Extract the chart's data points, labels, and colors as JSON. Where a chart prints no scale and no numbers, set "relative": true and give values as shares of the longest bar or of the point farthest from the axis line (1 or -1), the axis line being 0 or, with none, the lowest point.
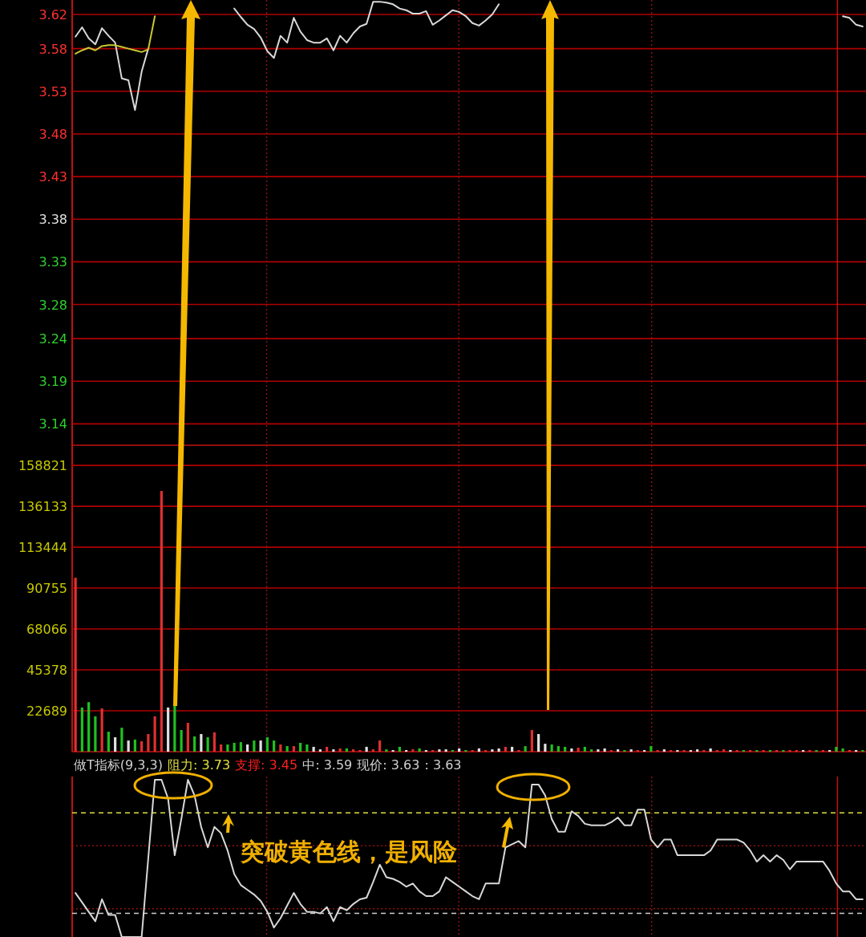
{
  "chart_data": [
    {
      "type": "line",
      "categories": [
        null,
        null,
        null,
        null,
        null,
        null,
        null,
        null,
        null,
        null,
        null,
        null,
        null,
        null,
        null,
        null,
        null,
        null,
        null,
        null,
        null,
        null,
        null,
        null,
        null,
        null,
        null,
        null,
        null,
        null,
        null,
        null,
        null,
        null,
        null,
        null,
        null,
        null,
        null,
        null,
        null,
        null,
        null,
        null,
        null,
        null,
        null,
        null,
        null,
        null,
        null,
        null,
        null,
        null,
        null,
        null,
        null,
        null,
        null,
        null,
        null,
        null,
        null,
        null,
        null,
        null,
        null,
        null,
        null,
        null,
        null,
        null,
        null,
        null,
        null,
        null,
        null,
        null,
        null,
        null,
        null,
        null,
        null,
        null,
        null,
        null,
        null,
        null,
        null,
        null,
        null,
        null,
        null,
        null,
        null,
        null,
        null,
        null,
        null,
        null,
        null,
        null,
        null,
        null,
        null,
        null,
        null,
        null,
        null,
        null,
        null,
        null,
        null,
        null,
        null,
        null,
        null,
        null,
        null,
        null
      ],
      "ylim": [
        3.115,
        3.637
      ],
      "yticks": [
        3.62,
        3.58,
        3.53,
        3.48,
        3.43,
        3.38,
        3.33,
        3.28,
        3.24,
        3.19,
        3.14
      ],
      "grid": "y",
      "tick_labels": "y",
      "series": [
        {
          "color": "#d8d8d8",
          "values": [
            3.594,
            3.605,
            3.592,
            3.585,
            3.604,
            3.595,
            3.587,
            3.545,
            3.543,
            3.508,
            3.553,
            3.58,
            null,
            null,
            null,
            null,
            null,
            null,
            null,
            null,
            null,
            null,
            null,
            null,
            null,
            null,
            null,
            null,
            null,
            null,
            null,
            null,
            null,
            null,
            null,
            null,
            null,
            null,
            null,
            null,
            null,
            null,
            null,
            null,
            null,
            null,
            null,
            null,
            null,
            null,
            null,
            null,
            null,
            null,
            null,
            null,
            null,
            null,
            null,
            null,
            null,
            null,
            null,
            null,
            null,
            null,
            null,
            null,
            null,
            null,
            null,
            null,
            null,
            null,
            null,
            null,
            null,
            null,
            null,
            null,
            null,
            null,
            null,
            null,
            null,
            null,
            null,
            null,
            null,
            null,
            null,
            null,
            null,
            null,
            null,
            null,
            null,
            null,
            null,
            null,
            null,
            null,
            null,
            null,
            null,
            null,
            null,
            null,
            null,
            null,
            null,
            null,
            null,
            null,
            null,
            null,
            null,
            null,
            null,
            null
          ]
        },
        {
          "color": "#d8d8d8",
          "values": [
            null,
            null,
            null,
            null,
            null,
            null,
            null,
            null,
            null,
            null,
            null,
            null,
            null,
            null,
            null,
            null,
            null,
            null,
            null,
            null,
            null,
            null,
            null,
            null,
            3.627,
            3.617,
            3.608,
            3.603,
            3.593,
            3.577,
            3.569,
            3.595,
            3.587,
            3.616,
            3.6,
            3.59,
            3.587,
            3.587,
            3.592,
            3.578,
            3.595,
            3.587,
            3.598,
            3.606,
            3.609,
            3.635,
            3.635,
            3.634,
            3.632,
            3.627,
            3.625,
            3.621,
            3.621,
            3.624,
            3.608,
            3.613,
            3.619,
            3.625,
            3.623,
            3.618,
            3.61,
            3.607,
            3.613,
            3.62,
            3.632,
            null,
            null,
            null,
            null,
            null,
            null,
            null,
            null,
            null,
            null,
            null,
            null,
            null,
            null,
            null,
            null,
            null,
            null,
            null,
            null,
            null,
            null,
            null,
            null,
            null,
            null,
            null,
            null,
            null,
            null,
            null,
            null,
            null,
            null,
            null,
            null,
            null,
            null,
            null,
            null,
            null,
            null,
            null,
            null,
            null,
            null,
            null,
            null,
            null,
            null,
            null,
            null,
            null,
            null,
            null
          ]
        },
        {
          "color": "#d8d8d8",
          "values": [
            null,
            null,
            null,
            null,
            null,
            null,
            null,
            null,
            null,
            null,
            null,
            null,
            null,
            null,
            null,
            null,
            null,
            null,
            null,
            null,
            null,
            null,
            null,
            null,
            null,
            null,
            null,
            null,
            null,
            null,
            null,
            null,
            null,
            null,
            null,
            null,
            null,
            null,
            null,
            null,
            null,
            null,
            null,
            null,
            null,
            null,
            null,
            null,
            null,
            null,
            null,
            null,
            null,
            null,
            null,
            null,
            null,
            null,
            null,
            null,
            null,
            null,
            null,
            null,
            null,
            null,
            null,
            null,
            null,
            null,
            null,
            null,
            null,
            null,
            null,
            null,
            null,
            null,
            null,
            null,
            null,
            null,
            null,
            null,
            null,
            null,
            null,
            null,
            null,
            null,
            null,
            null,
            null,
            null,
            null,
            null,
            null,
            null,
            null,
            null,
            null,
            null,
            null,
            null,
            null,
            null,
            null,
            null,
            null,
            null,
            null,
            null,
            null,
            null,
            null,
            null,
            3.618,
            3.616,
            3.608,
            3.606
          ]
        },
        {
          "color": "#c8c832",
          "values": [
            3.574,
            3.578,
            3.581,
            3.578,
            3.583,
            3.584,
            3.584,
            3.582,
            3.58,
            3.578,
            3.576,
            3.579,
            3.618,
            null,
            null,
            null,
            null,
            null,
            null,
            null,
            null,
            null,
            null,
            null,
            null,
            null,
            null,
            null,
            null,
            null,
            null,
            null,
            null,
            null,
            null,
            null,
            null,
            null,
            null,
            null,
            null,
            null,
            null,
            null,
            null,
            null,
            null,
            null,
            null,
            null,
            null,
            null,
            null,
            null,
            null,
            null,
            null,
            null,
            null,
            null,
            null,
            null,
            null,
            null,
            null,
            null,
            null,
            null,
            null,
            null,
            null,
            null,
            null,
            null,
            null,
            null,
            null,
            null,
            null,
            null,
            null,
            null,
            null,
            null,
            null,
            null,
            null,
            null,
            null,
            null,
            null,
            null,
            null,
            null,
            null,
            null,
            null,
            null,
            null,
            null,
            null,
            null,
            null,
            null,
            null,
            null,
            null,
            null,
            null,
            null,
            null,
            null,
            null,
            null,
            null,
            null,
            null,
            null,
            null,
            null
          ]
        }
      ]
    },
    {
      "type": "bar",
      "ylim": [
        0,
        170000
      ],
      "yticks": [
        22689,
        45378,
        68066,
        90755,
        113444,
        136133,
        158821
      ],
      "grid": "y",
      "tick_labels": "y",
      "categories": [
        null,
        null,
        null,
        null,
        null,
        null,
        null,
        null,
        null,
        null,
        null,
        null,
        null,
        null,
        null,
        null,
        null,
        null,
        null,
        null,
        null,
        null,
        null,
        null,
        null,
        null,
        null,
        null,
        null,
        null,
        null,
        null,
        null,
        null,
        null,
        null,
        null,
        null,
        null,
        null,
        null,
        null,
        null,
        null,
        null,
        null,
        null,
        null,
        null,
        null,
        null,
        null,
        null,
        null,
        null,
        null,
        null,
        null,
        null,
        null,
        null,
        null,
        null,
        null,
        null,
        null,
        null,
        null,
        null,
        null,
        null,
        null,
        null,
        null,
        null,
        null,
        null,
        null,
        null,
        null,
        null,
        null,
        null,
        null,
        null,
        null,
        null,
        null,
        null,
        null,
        null,
        null,
        null,
        null,
        null,
        null,
        null,
        null,
        null,
        null,
        null,
        null,
        null,
        null,
        null,
        null,
        null,
        null,
        null,
        null,
        null,
        null,
        null,
        null,
        null,
        null,
        null,
        null,
        null,
        null
      ],
      "values": [
        96500,
        24500,
        27500,
        19600,
        24000,
        11100,
        8000,
        13300,
        6200,
        6700,
        5800,
        9800,
        19600,
        144600,
        24500,
        26200,
        12000,
        16000,
        8500,
        9800,
        8000,
        10700,
        4000,
        4000,
        4900,
        5300,
        4000,
        6200,
        6200,
        8000,
        6200,
        4000,
        3100,
        3100,
        4900,
        4000,
        2700,
        1300,
        2700,
        1300,
        1800,
        1800,
        1300,
        900,
        2700,
        1300,
        6200,
        1300,
        900,
        2700,
        900,
        1300,
        1800,
        900,
        900,
        1300,
        1300,
        900,
        1800,
        900,
        900,
        1800,
        900,
        1300,
        1800,
        2700,
        2700,
        900,
        3100,
        12000,
        9800,
        4400,
        4000,
        3100,
        2700,
        1800,
        2200,
        2700,
        1300,
        1300,
        1800,
        900,
        1300,
        900,
        1300,
        900,
        900,
        3100,
        900,
        1300,
        900,
        900,
        900,
        900,
        1300,
        900,
        1800,
        900,
        1300,
        900,
        900,
        900,
        900,
        900,
        900,
        900,
        900,
        900,
        900,
        900,
        900,
        900,
        900,
        900,
        900,
        2700,
        1800,
        900,
        900,
        900
      ],
      "colors": [
        "#e03030",
        "#20c020",
        "#20c020",
        "#20c020",
        "#e03030",
        "#20c020",
        "#e0e0e0",
        "#20c020",
        "#e0e0e0",
        "#20c020",
        "#e03030",
        "#e03030",
        "#e03030",
        "#e03030",
        "#e0e0e0",
        "#20c020",
        "#20c020",
        "#e03030",
        "#20c020",
        "#e0e0e0",
        "#20c020",
        "#e03030",
        "#e03030",
        "#20c020",
        "#20c020",
        "#20c020",
        "#e0e0e0",
        "#20c020",
        "#e0e0e0",
        "#20c020",
        "#20c020",
        "#e03030",
        "#20c020",
        "#e03030",
        "#20c020",
        "#20c020",
        "#e0e0e0",
        "#e0e0e0",
        "#e03030",
        "#e0e0e0",
        "#e03030",
        "#20c020",
        "#e03030",
        "#e03030",
        "#e0e0e0",
        "#e03030",
        "#e03030",
        "#20c020",
        "#e0e0e0",
        "#20c020",
        "#e0e0e0",
        "#e03030",
        "#20c020",
        "#e0e0e0",
        "#e03030",
        "#e0e0e0",
        "#e0e0e0",
        "#20c020",
        "#e0e0e0",
        "#20c020",
        "#e03030",
        "#e0e0e0",
        "#e03030",
        "#e0e0e0",
        "#e0e0e0",
        "#e03030",
        "#e0e0e0",
        "#e03030",
        "#20c020",
        "#e03030",
        "#e0e0e0",
        "#e0e0e0",
        "#20c020",
        "#20c020",
        "#20c020",
        "#e0e0e0",
        "#e03030",
        "#20c020",
        "#20c020",
        "#e0e0e0",
        "#e0e0e0",
        "#e03030",
        "#e0e0e0",
        "#20c020",
        "#e0e0e0",
        "#e03030",
        "#e0e0e0",
        "#20c020",
        "#e03030",
        "#e0e0e0",
        "#e03030",
        "#e0e0e0",
        "#e03030",
        "#e0e0e0",
        "#e0e0e0",
        "#e03030",
        "#e0e0e0",
        "#e03030",
        "#e03030",
        "#e0e0e0",
        "#e03030",
        "#20c020",
        "#e03030",
        "#20c020",
        "#e03030",
        "#20c020",
        "#e03030",
        "#20c020",
        "#e03030",
        "#e03030",
        "#e0e0e0",
        "#e03030",
        "#20c020",
        "#e03030",
        "#e0e0e0",
        "#20c020",
        "#20c020",
        "#e03030",
        "#e0e0e0",
        "#20c020"
      ]
    },
    {
      "type": "line",
      "relative": true,
      "tick_labels": false,
      "categories": [
        null,
        null,
        null,
        null,
        null,
        null,
        null,
        null,
        null,
        null,
        null,
        null,
        null,
        null,
        null,
        null,
        null,
        null,
        null,
        null,
        null,
        null,
        null,
        null,
        null,
        null,
        null,
        null,
        null,
        null,
        null,
        null,
        null,
        null,
        null,
        null,
        null,
        null,
        null,
        null,
        null,
        null,
        null,
        null,
        null,
        null,
        null,
        null,
        null,
        null,
        null,
        null,
        null,
        null,
        null,
        null,
        null,
        null,
        null,
        null,
        null,
        null,
        null,
        null,
        null,
        null,
        null,
        null,
        null,
        null,
        null,
        null,
        null,
        null,
        null,
        null,
        null,
        null,
        null,
        null,
        null,
        null,
        null,
        null,
        null,
        null,
        null,
        null,
        null,
        null,
        null,
        null,
        null,
        null,
        null,
        null,
        null,
        null,
        null,
        null,
        null,
        null,
        null,
        null,
        null,
        null,
        null,
        null,
        null,
        null,
        null,
        null,
        null,
        null,
        null,
        null,
        null,
        null,
        null,
        null
      ],
      "series": [
        {
          "color": "#d8d8d8",
          "values": [
            0.28,
            0.22,
            0.16,
            0.1,
            0.24,
            0.14,
            0.14,
            0,
            0,
            0,
            0,
            0.5,
            1.0,
            1.0,
            0.88,
            0.52,
            0.75,
            1.0,
            0.9,
            0.7,
            0.57,
            0.7,
            0.66,
            0.55,
            0.4,
            0.33,
            0.3,
            0.27,
            0.23,
            0.16,
            0.06,
            0.12,
            0.2,
            0.28,
            0.21,
            0.16,
            0.16,
            0.15,
            0.19,
            0.1,
            0.19,
            0.17,
            0.21,
            0.24,
            0.25,
            0.35,
            0.46,
            0.38,
            0.37,
            0.35,
            0.32,
            0.34,
            0.29,
            0.26,
            0.26,
            0.29,
            0.38,
            0.35,
            0.32,
            0.29,
            0.26,
            0.24,
            0.34,
            0.34,
            0.34,
            0.57,
            0.59,
            0.61,
            0.57,
            0.97,
            0.97,
            0.9,
            0.75,
            0.67,
            0.67,
            0.8,
            0.77,
            0.72,
            0.71,
            0.71,
            0.71,
            0.73,
            0.76,
            0.71,
            0.71,
            0.81,
            0.81,
            0.62,
            0.57,
            0.62,
            0.62,
            0.52,
            0.52,
            0.52,
            0.52,
            0.52,
            0.55,
            0.62,
            0.62,
            0.62,
            0.62,
            0.6,
            0.55,
            0.48,
            0.52,
            0.48,
            0.52,
            0.49,
            0.43,
            0.48,
            0.48,
            0.48,
            0.48,
            0.48,
            0.42,
            0.34,
            0.29,
            0.29,
            0.24,
            0.24
          ]
        }
      ],
      "ref_lines": [
        {
          "axis": "y",
          "value": 0.79,
          "color": "#e0e040",
          "line_style": "dashed"
        },
        {
          "axis": "y",
          "value": 0.58,
          "color": "#901010",
          "line_style": "dotted"
        },
        {
          "axis": "y",
          "value": 0.18,
          "color": "#901010",
          "line_style": "dotted"
        },
        {
          "axis": "y",
          "value": 0.15,
          "color": "#d0d0d0",
          "line_style": "dashed"
        }
      ],
      "annotations": [
        "做T指标(9,3,3)",
        "阻力: 3.73",
        "支撑: 3.45",
        "中: 3.59",
        "现价: 3.63",
        ": 3.63",
        "突破黄色线，是风险"
      ]
    }
  ]
}
